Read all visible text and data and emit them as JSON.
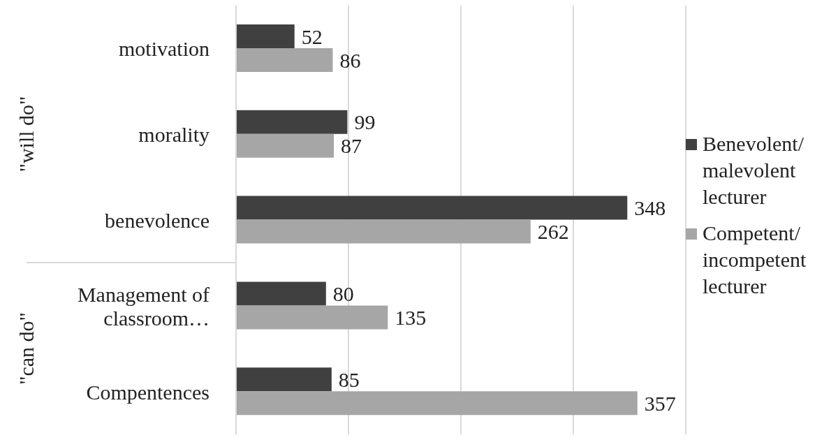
{
  "chart_data": {
    "type": "bar",
    "orientation": "horizontal",
    "categories": [
      "motivation",
      "morality",
      "benevolence",
      "Management of classroom…",
      "Compentences"
    ],
    "series": [
      {
        "name": "Benevolent/ malevolent lecturer",
        "color": "#404040",
        "values": [
          52,
          99,
          348,
          80,
          85
        ]
      },
      {
        "name": "Competent/ incompetent lecturer",
        "color": "#a6a6a6",
        "values": [
          86,
          87,
          262,
          135,
          357
        ]
      }
    ],
    "xlim": [
      0,
      400
    ],
    "xticks": [
      {
        "value": 0,
        "label": null
      },
      {
        "value": 100,
        "label": null
      },
      {
        "value": 200,
        "label": null
      },
      {
        "value": 300,
        "label": null
      },
      {
        "value": 400,
        "label": null
      }
    ],
    "grid": "x",
    "tick_labels": "y",
    "data_labels": true,
    "legend": "right",
    "annotations": [
      "\"will do\"",
      "\"can do\""
    ]
  }
}
